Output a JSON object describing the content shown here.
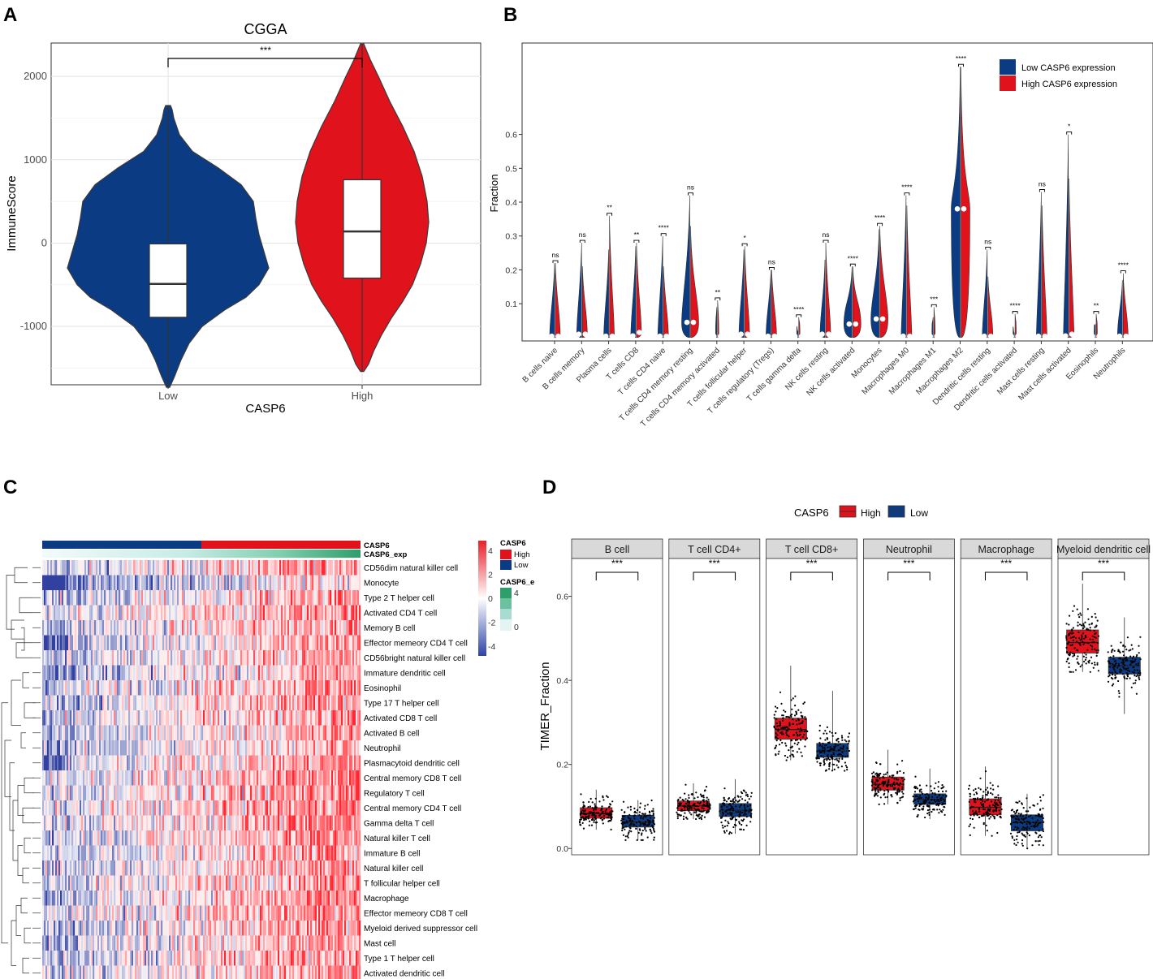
{
  "panel_labels": [
    "A",
    "B",
    "C",
    "D"
  ],
  "chart_data": [
    {
      "panel": "A",
      "type": "violin",
      "title": "CGGA",
      "xlabel": "CASP6",
      "ylabel": "ImmuneScore",
      "ylim": [
        -1700,
        2400
      ],
      "yticks": [
        2000,
        1000,
        0,
        -1000
      ],
      "ytick_labels": [
        "2000",
        "1000",
        "0",
        "-1000"
      ],
      "categories": [
        "Low",
        "High"
      ],
      "colors": [
        "#0b3b82",
        "#e0121c"
      ],
      "groups": [
        {
          "name": "Low",
          "min": -1730,
          "max": 1650,
          "q1": -890,
          "median": -490,
          "q3": -10
        },
        {
          "name": "High",
          "min": -1540,
          "max": 2390,
          "q1": -420,
          "median": 140,
          "q3": 760
        }
      ],
      "significance": "***"
    },
    {
      "panel": "B",
      "type": "split-violin",
      "ylabel": "Fraction",
      "ylim": [
        -0.01,
        0.87
      ],
      "yticks": [
        0.1,
        0.2,
        0.3,
        0.4,
        0.5,
        0.6
      ],
      "ytick_labels": [
        "0.1",
        "0.2",
        "0.3",
        "0.4",
        "0.5",
        "0.6"
      ],
      "legend": [
        "Low CASP6 expression",
        "High CASP6 expression"
      ],
      "legend_colors": [
        "#0b3b82",
        "#e0121c"
      ],
      "categories": [
        "B cells naive",
        "B cells memory",
        "Plasma cells",
        "T cells CD8",
        "T cells CD4 naive",
        "T cells CD4 memory resting",
        "T cells CD4 memory activated",
        "T cells follicular helper",
        "T cells regulatory (Tregs)",
        "T cells gamma delta",
        "NK cells resting",
        "NK cells activated",
        "Monocytes",
        "Macrophages M0",
        "Macrophages M1",
        "Macrophages M2",
        "Dendritic cells resting",
        "Dendritic cells activated",
        "Mast cells resting",
        "Mast cells activated",
        "Eosinophils",
        "Neutrophils"
      ],
      "significance": [
        "ns",
        "ns",
        "**",
        "**",
        "****",
        "ns",
        "**",
        "*",
        "ns",
        "****",
        "ns",
        "****",
        "****",
        "****",
        "***",
        "****",
        "ns",
        "****",
        "ns",
        "*",
        "**",
        "****"
      ],
      "max_low": [
        0.22,
        0.28,
        0.26,
        0.27,
        0.3,
        0.42,
        0.09,
        0.26,
        0.2,
        0.02,
        0.23,
        0.21,
        0.32,
        0.42,
        0.06,
        0.8,
        0.26,
        0.015,
        0.43,
        0.6,
        0.04,
        0.17
      ],
      "max_high": [
        0.22,
        0.21,
        0.36,
        0.28,
        0.21,
        0.33,
        0.11,
        0.27,
        0.2,
        0.06,
        0.28,
        0.21,
        0.33,
        0.39,
        0.09,
        0.8,
        0.18,
        0.07,
        0.39,
        0.47,
        0.07,
        0.19
      ],
      "median_low": [
        0,
        0.01,
        0,
        0.005,
        0,
        0.045,
        0,
        0.01,
        0,
        0,
        0.01,
        0.04,
        0.055,
        0,
        0,
        0.38,
        0,
        0,
        0,
        0.005,
        0,
        0
      ],
      "median_high": [
        0,
        0.01,
        0,
        0.015,
        0,
        0.045,
        0,
        0.01,
        0,
        0,
        0.01,
        0.04,
        0.055,
        0,
        0,
        0.38,
        0,
        0,
        0,
        0.01,
        0,
        0
      ]
    },
    {
      "panel": "C",
      "type": "heatmap",
      "annotation_rows": [
        "CASP6",
        "CASP6_exp"
      ],
      "rows": [
        "CD56dim natural killer cell",
        "Monocyte",
        "Type 2 T helper cell",
        "Activated CD4 T cell",
        "Memory B cell",
        "Effector memeory CD4 T cell",
        "CD56bright natural killer cell",
        "Immature dendritic cell",
        "Eosinophil",
        "Type 17 T helper cell",
        "Activated CD8 T cell",
        "Activated B cell",
        "Neutrophil",
        "Plasmacytoid dendritic cell",
        "Central memory CD8 T cell",
        "Regulatory T cell",
        "Central memory CD4 T cell",
        "Gamma delta T cell",
        "Natural killer T cell",
        "Immature  B cell",
        "Natural killer cell",
        "T follicular helper cell",
        "Macrophage",
        "Effector memeory CD8 T cell",
        "Myeloid derived suppressor cell",
        "Mast cell",
        "Type 1 T helper cell",
        "Activated dendritic cell"
      ],
      "row_bias": [
        0.1,
        -0.45,
        0.0,
        0.15,
        0.1,
        0.0,
        0.05,
        -0.1,
        0.2,
        0.05,
        0.1,
        0.0,
        -0.05,
        0.15,
        0.3,
        0.25,
        0.3,
        0.25,
        0.25,
        0.1,
        0.15,
        0.2,
        0.15,
        0.2,
        0.1,
        0.05,
        0.15,
        0.15
      ],
      "color_scale_ticks": [
        "4",
        "2",
        "0",
        "-2",
        "-4"
      ],
      "color_scale_values": [
        4,
        2,
        0,
        -2,
        -4
      ],
      "legend_casp6_title": "CASP6",
      "legend_casp6_items": [
        "High",
        "Low"
      ],
      "legend_exp_title": "CASP6_e",
      "legend_exp_ticks": [
        "4",
        "0"
      ],
      "colors": {
        "high": "#e0121c",
        "low": "#0b3b82",
        "pos": "#d7301f",
        "neg": "#2b3f9f",
        "exp_dark": "#2e9e6b",
        "exp_light": "#d9f0ee"
      }
    },
    {
      "panel": "D",
      "type": "box-jitter",
      "legend_title": "CASP6",
      "legend": [
        "High",
        "Low"
      ],
      "colors": {
        "High": "#e0121c",
        "Low": "#0b3b82"
      },
      "ylabel": "TIMER_Fraction",
      "ylim": [
        -0.015,
        0.69
      ],
      "yticks": [
        0.0,
        0.2,
        0.4,
        0.6
      ],
      "ytick_labels": [
        "0.0",
        "0.2",
        "0.4",
        "0.6"
      ],
      "facets": [
        {
          "name": "B cell",
          "significance": "***",
          "High": {
            "q1": 0.072,
            "median": 0.083,
            "q3": 0.097,
            "min": 0.045,
            "max": 0.14
          },
          "Low": {
            "q1": 0.051,
            "median": 0.063,
            "q3": 0.079,
            "min": 0.02,
            "max": 0.115
          }
        },
        {
          "name": "T cell CD4+",
          "significance": "***",
          "High": {
            "q1": 0.09,
            "median": 0.101,
            "q3": 0.113,
            "min": 0.07,
            "max": 0.155
          },
          "Low": {
            "q1": 0.076,
            "median": 0.091,
            "q3": 0.107,
            "min": 0.035,
            "max": 0.165
          }
        },
        {
          "name": "T cell CD8+",
          "significance": "***",
          "High": {
            "q1": 0.26,
            "median": 0.283,
            "q3": 0.31,
            "min": 0.21,
            "max": 0.435
          },
          "Low": {
            "q1": 0.217,
            "median": 0.232,
            "q3": 0.25,
            "min": 0.185,
            "max": 0.375
          }
        },
        {
          "name": "Neutrophil",
          "significance": "***",
          "High": {
            "q1": 0.139,
            "median": 0.153,
            "q3": 0.17,
            "min": 0.105,
            "max": 0.235
          },
          "Low": {
            "q1": 0.105,
            "median": 0.117,
            "q3": 0.13,
            "min": 0.07,
            "max": 0.19
          }
        },
        {
          "name": "Macrophage",
          "significance": "***",
          "High": {
            "q1": 0.08,
            "median": 0.098,
            "q3": 0.118,
            "min": 0.03,
            "max": 0.195
          },
          "Low": {
            "q1": 0.042,
            "median": 0.062,
            "q3": 0.08,
            "min": 0.0,
            "max": 0.13
          }
        },
        {
          "name": "Myeloid dendritic cell",
          "significance": "***",
          "High": {
            "q1": 0.465,
            "median": 0.49,
            "q3": 0.52,
            "min": 0.42,
            "max": 0.63
          },
          "Low": {
            "q1": 0.415,
            "median": 0.435,
            "q3": 0.455,
            "min": 0.32,
            "max": 0.55
          }
        }
      ]
    }
  ]
}
